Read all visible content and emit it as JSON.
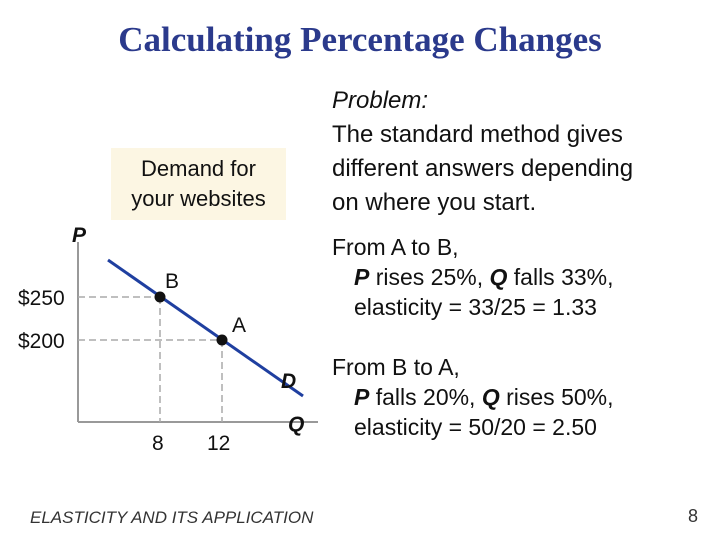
{
  "slide": {
    "title": "Calculating Percentage Changes",
    "footer": "ELASTICITY AND ITS APPLICATION",
    "page_number": "8"
  },
  "graph": {
    "callout_line1": "Demand for",
    "callout_line2": "your websites",
    "y_axis_label": "P",
    "x_axis_label": "Q",
    "curve_label": "D",
    "price_high": "$250",
    "price_low": "$200",
    "qty_low": "8",
    "qty_high": "12",
    "point_b_label": "B",
    "point_a_label": "A"
  },
  "problem": {
    "label": "Problem:",
    "line1": "The standard method gives",
    "line2": "different answers depending",
    "line3": "on where you start."
  },
  "a_to_b": {
    "heading": "From A to B,",
    "p_symbol": "P",
    "p_text": " rises 25%, ",
    "q_symbol": "Q",
    "q_text": " falls 33%,",
    "elasticity": "elasticity = 33/25 = 1.33"
  },
  "b_to_a": {
    "heading": "From B to A,",
    "p_symbol": "P",
    "p_text": " falls 20%, ",
    "q_symbol": "Q",
    "q_text": " rises 50%,",
    "elasticity": "elasticity = 50/20 = 2.50"
  },
  "colors": {
    "title": "#2b3a8c",
    "demand_curve": "#1f3fa0",
    "callout_fill": "#fcf6e3"
  }
}
